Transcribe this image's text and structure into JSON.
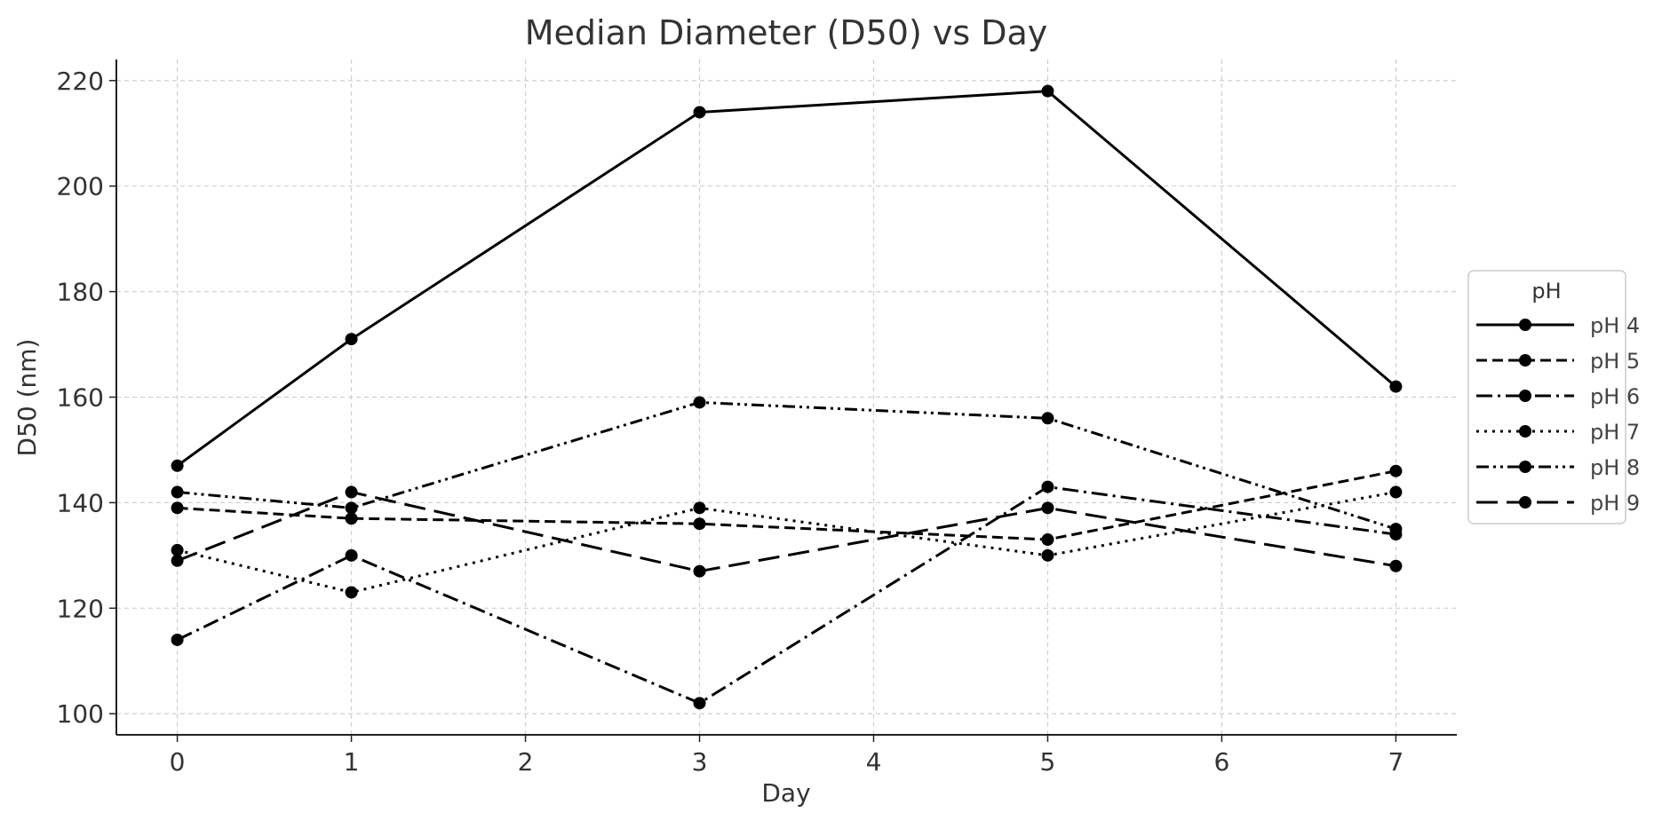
{
  "chart_data": {
    "type": "line",
    "title": "Median Diameter (D50) vs Day",
    "xlabel": "Day",
    "ylabel": "D50 (nm)",
    "x": [
      0,
      1,
      3,
      5,
      7
    ],
    "xlim": [
      -0.35,
      7.35
    ],
    "ylim": [
      96,
      224
    ],
    "xticks": [
      0,
      1,
      2,
      3,
      4,
      5,
      6,
      7
    ],
    "yticks": [
      100,
      120,
      140,
      160,
      180,
      200,
      220
    ],
    "grid": true,
    "legend": {
      "title": "pH",
      "position": "right"
    },
    "line_color": "#000000",
    "series": [
      {
        "name": "pH 4",
        "style": "solid",
        "values": [
          147,
          171,
          214,
          218,
          162
        ]
      },
      {
        "name": "pH 5",
        "style": "dashed",
        "values": [
          139,
          137,
          136,
          133,
          146
        ]
      },
      {
        "name": "pH 6",
        "style": "dashdot",
        "values": [
          114,
          130,
          102,
          143,
          134
        ]
      },
      {
        "name": "pH 7",
        "style": "dotted",
        "values": [
          131,
          123,
          139,
          130,
          142
        ]
      },
      {
        "name": "pH 8",
        "style": "dashdotdot",
        "values": [
          142,
          139,
          159,
          156,
          135
        ]
      },
      {
        "name": "pH 9",
        "style": "longdash",
        "values": [
          129,
          142,
          127,
          139,
          128
        ]
      }
    ]
  }
}
